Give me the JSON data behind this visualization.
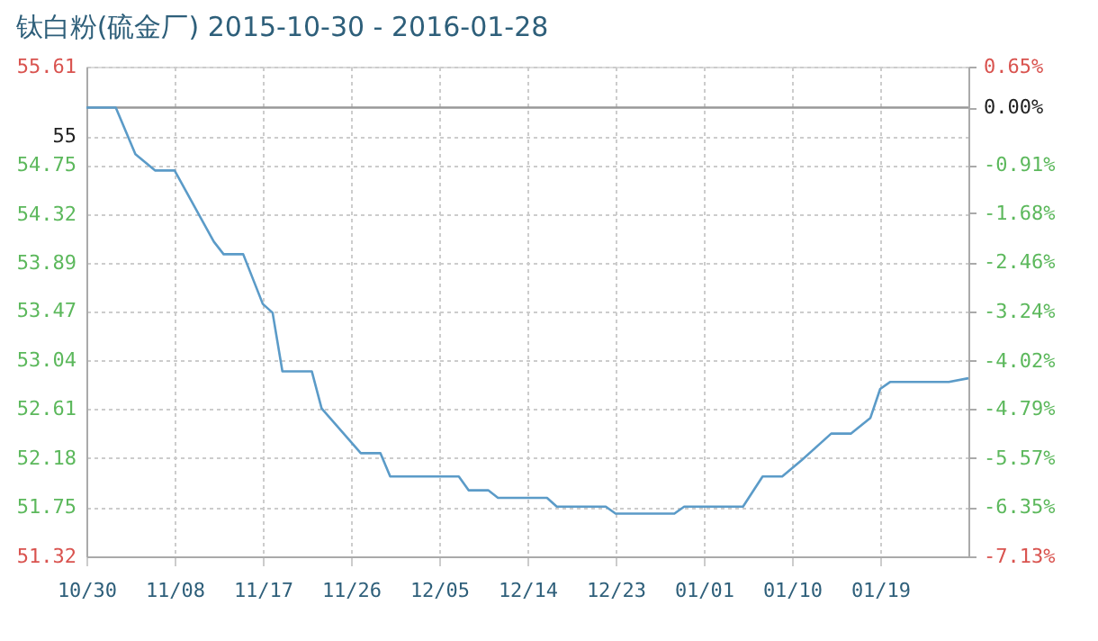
{
  "chart_data": {
    "type": "line",
    "title": "钛白粉(硫金厂) 2015-10-30 - 2016-01-28",
    "x": [
      "2015-10-30",
      "2015-11-02",
      "2015-11-04",
      "2015-11-06",
      "2015-11-08",
      "2015-11-12",
      "2015-11-13",
      "2015-11-15",
      "2015-11-17",
      "2015-11-18",
      "2015-11-19",
      "2015-11-22",
      "2015-11-23",
      "2015-11-27",
      "2015-11-29",
      "2015-11-30",
      "2015-12-07",
      "2015-12-08",
      "2015-12-10",
      "2015-12-11",
      "2015-12-16",
      "2015-12-17",
      "2015-12-22",
      "2015-12-23",
      "2015-12-29",
      "2015-12-30",
      "2016-01-05",
      "2016-01-07",
      "2016-01-09",
      "2016-01-11",
      "2016-01-14",
      "2016-01-16",
      "2016-01-18",
      "2016-01-19",
      "2016-01-20",
      "2016-01-26",
      "2016-01-28"
    ],
    "series": [
      {
        "color": "#5b9bc8",
        "axis": "y2",
        "values": [
          0.0,
          0.0,
          -0.74,
          -1.0,
          -1.0,
          -2.13,
          -2.33,
          -2.33,
          -3.12,
          -3.26,
          -4.19,
          -4.19,
          -4.78,
          -5.49,
          -5.49,
          -5.86,
          -5.86,
          -6.08,
          -6.08,
          -6.2,
          -6.2,
          -6.34,
          -6.34,
          -6.45,
          -6.45,
          -6.34,
          -6.34,
          -5.86,
          -5.86,
          -5.6,
          -5.18,
          -5.18,
          -4.93,
          -4.47,
          -4.36,
          -4.36,
          -4.3
        ]
      }
    ],
    "xlim": [
      "2015-10-30",
      "2016-01-28"
    ],
    "xticks": [
      {
        "value": "2015-10-30",
        "label": "10/30"
      },
      {
        "value": "2015-11-08",
        "label": "11/08"
      },
      {
        "value": "2015-11-17",
        "label": "11/17"
      },
      {
        "value": "2015-11-26",
        "label": "11/26"
      },
      {
        "value": "2015-12-05",
        "label": "12/05"
      },
      {
        "value": "2015-12-14",
        "label": "12/14"
      },
      {
        "value": "2015-12-23",
        "label": "12/23"
      },
      {
        "value": "2016-01-01",
        "label": "01/01"
      },
      {
        "value": "2016-01-10",
        "label": "01/10"
      },
      {
        "value": "2016-01-19",
        "label": "01/19"
      }
    ],
    "ylim": [
      51.32,
      55.61
    ],
    "yticks": [
      55.61,
      55,
      54.75,
      54.32,
      53.89,
      53.47,
      53.04,
      52.61,
      52.18,
      51.75,
      51.32
    ],
    "y2lim": [
      -7.13,
      0.65
    ],
    "y2ticks": [
      {
        "value": 0.65,
        "label": "0.65%"
      },
      {
        "value": 0.0,
        "label": "0.00%"
      },
      {
        "value": -0.91,
        "label": "-0.91%"
      },
      {
        "value": -1.68,
        "label": "-1.68%"
      },
      {
        "value": -2.46,
        "label": "-2.46%"
      },
      {
        "value": -3.24,
        "label": "-3.24%"
      },
      {
        "value": -4.02,
        "label": "-4.02%"
      },
      {
        "value": -4.79,
        "label": "-4.79%"
      },
      {
        "value": -5.57,
        "label": "-5.57%"
      },
      {
        "value": -6.35,
        "label": "-6.35%"
      },
      {
        "value": -7.13,
        "label": "-7.13%"
      }
    ],
    "ref_lines": [
      {
        "axis": "y2",
        "value": 0.0,
        "color": "#999999",
        "line_style": "solid"
      }
    ],
    "grid": true,
    "marker": "none",
    "line_style": "solid"
  }
}
